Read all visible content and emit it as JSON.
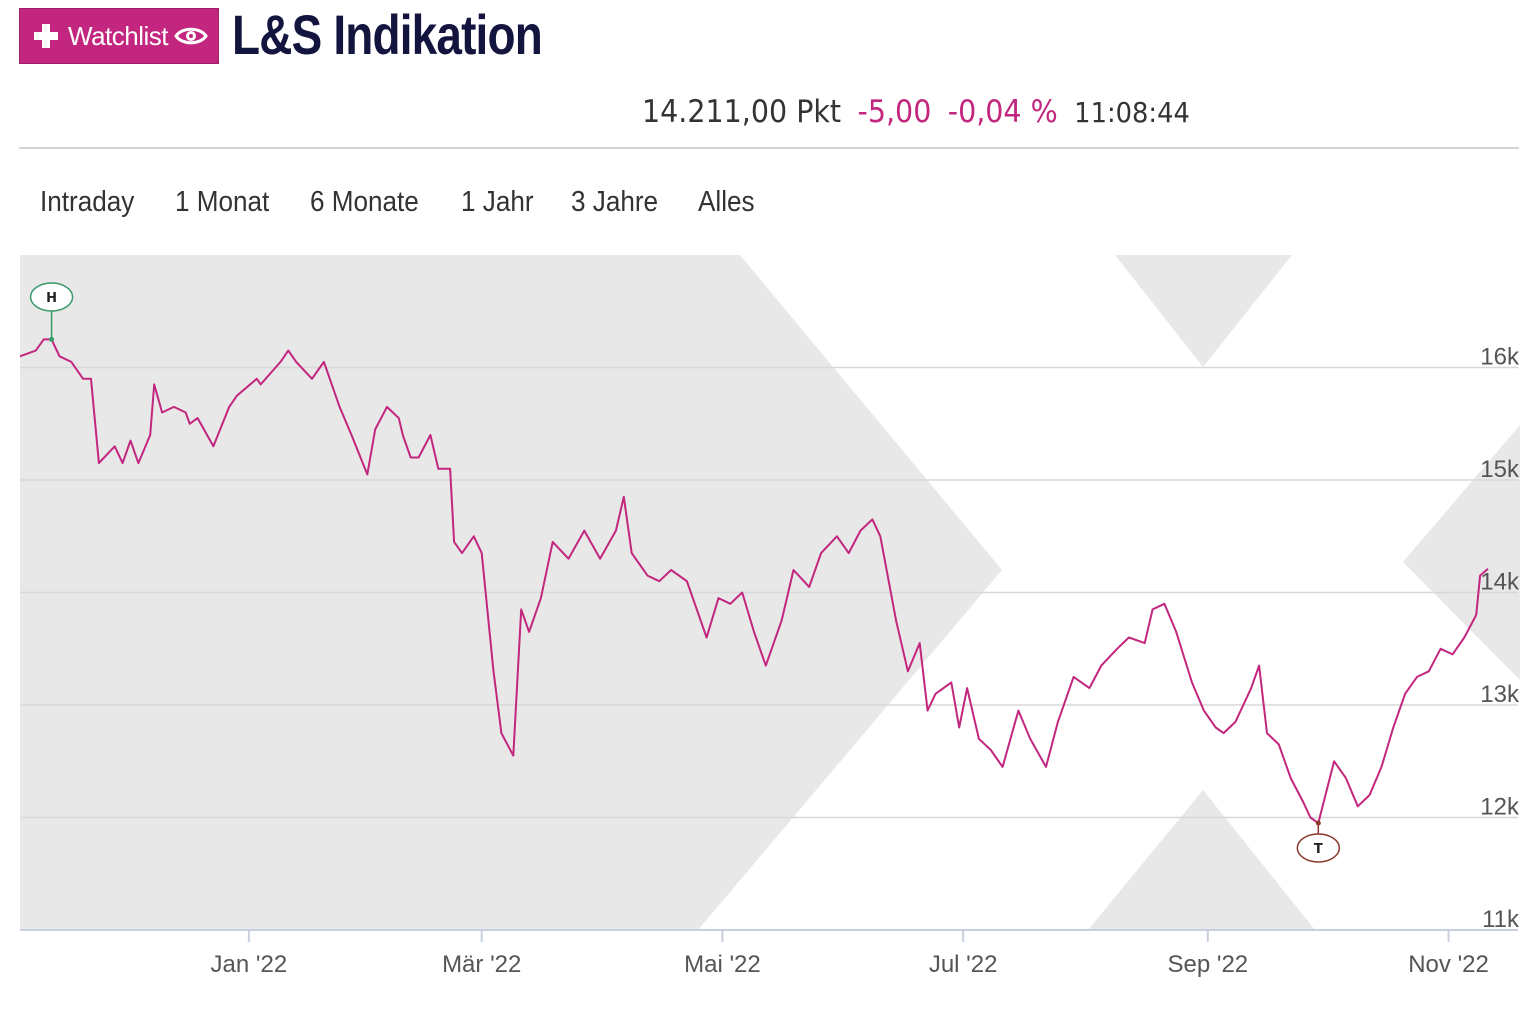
{
  "header": {
    "watchlist_label": "Watchlist",
    "title": "L&S Indikation"
  },
  "quote": {
    "price": "14.211,00 Pkt",
    "change_abs": "-5,00",
    "change_pct": "-0,04 %",
    "time": "11:08:44"
  },
  "tabs": [
    {
      "label": "Intraday"
    },
    {
      "label": "1 Monat"
    },
    {
      "label": "6 Monate"
    },
    {
      "label": "1 Jahr"
    },
    {
      "label": "3 Jahre"
    },
    {
      "label": "Alles"
    }
  ],
  "icons": {
    "watchlist_plus": "plus-icon",
    "watchlist_eye": "eye-icon"
  },
  "colors": {
    "accent": "#c2267e",
    "title": "#14153f",
    "high_marker": "#3a9a6a",
    "low_marker": "#8b3a2a",
    "range_shade": "#e8e8e8",
    "grid": "#d8d8d8"
  },
  "chart_data": {
    "type": "line",
    "title": "",
    "xlabel": "",
    "ylabel": "",
    "x_ticks": [
      "Jan '22",
      "Mär '22",
      "Mai '22",
      "Jul '22",
      "Sep '22",
      "Nov '22"
    ],
    "y_ticks": [
      "11k",
      "12k",
      "13k",
      "14k",
      "15k",
      "16k"
    ],
    "ylim": [
      11000,
      17000
    ],
    "xlim": [
      "2021-11-04",
      "2022-11-11"
    ],
    "grid": "horizontal",
    "markers": {
      "high": {
        "label": "H",
        "x": "2021-11-12",
        "y": 16250
      },
      "low": {
        "label": "T",
        "x": "2022-09-29",
        "y": 11950
      }
    },
    "series": [
      {
        "values": [
          [
            "2021-11-04",
            16100
          ],
          [
            "2021-11-08",
            16150
          ],
          [
            "2021-11-10",
            16250
          ],
          [
            "2021-11-12",
            16250
          ],
          [
            "2021-11-14",
            16100
          ],
          [
            "2021-11-17",
            16050
          ],
          [
            "2021-11-20",
            15900
          ],
          [
            "2021-11-22",
            15900
          ],
          [
            "2021-11-24",
            15150
          ],
          [
            "2021-11-28",
            15300
          ],
          [
            "2021-11-30",
            15150
          ],
          [
            "2021-12-02",
            15350
          ],
          [
            "2021-12-04",
            15150
          ],
          [
            "2021-12-07",
            15400
          ],
          [
            "2021-12-08",
            15850
          ],
          [
            "2021-12-10",
            15600
          ],
          [
            "2021-12-13",
            15650
          ],
          [
            "2021-12-16",
            15600
          ],
          [
            "2021-12-17",
            15500
          ],
          [
            "2021-12-19",
            15550
          ],
          [
            "2021-12-23",
            15300
          ],
          [
            "2021-12-27",
            15650
          ],
          [
            "2021-12-29",
            15750
          ],
          [
            "2022-01-03",
            15900
          ],
          [
            "2022-01-04",
            15850
          ],
          [
            "2022-01-09",
            16050
          ],
          [
            "2022-01-11",
            16150
          ],
          [
            "2022-01-13",
            16050
          ],
          [
            "2022-01-17",
            15900
          ],
          [
            "2022-01-19",
            16000
          ],
          [
            "2022-01-20",
            16050
          ],
          [
            "2022-01-24",
            15650
          ],
          [
            "2022-01-27",
            15400
          ],
          [
            "2022-01-31",
            15050
          ],
          [
            "2022-02-02",
            15450
          ],
          [
            "2022-02-05",
            15650
          ],
          [
            "2022-02-08",
            15550
          ],
          [
            "2022-02-09",
            15400
          ],
          [
            "2022-02-11",
            15200
          ],
          [
            "2022-02-13",
            15200
          ],
          [
            "2022-02-16",
            15400
          ],
          [
            "2022-02-18",
            15100
          ],
          [
            "2022-02-21",
            15100
          ],
          [
            "2022-02-22",
            14450
          ],
          [
            "2022-02-24",
            14350
          ],
          [
            "2022-02-27",
            14500
          ],
          [
            "2022-03-01",
            14350
          ],
          [
            "2022-03-04",
            13300
          ],
          [
            "2022-03-06",
            12750
          ],
          [
            "2022-03-09",
            12550
          ],
          [
            "2022-03-11",
            13850
          ],
          [
            "2022-03-13",
            13650
          ],
          [
            "2022-03-16",
            13950
          ],
          [
            "2022-03-19",
            14450
          ],
          [
            "2022-03-23",
            14300
          ],
          [
            "2022-03-27",
            14550
          ],
          [
            "2022-03-31",
            14300
          ],
          [
            "2022-04-04",
            14550
          ],
          [
            "2022-04-06",
            14850
          ],
          [
            "2022-04-08",
            14350
          ],
          [
            "2022-04-12",
            14150
          ],
          [
            "2022-04-15",
            14100
          ],
          [
            "2022-04-18",
            14200
          ],
          [
            "2022-04-22",
            14100
          ],
          [
            "2022-04-27",
            13600
          ],
          [
            "2022-04-30",
            13950
          ],
          [
            "2022-05-03",
            13900
          ],
          [
            "2022-05-06",
            14000
          ],
          [
            "2022-05-09",
            13650
          ],
          [
            "2022-05-12",
            13350
          ],
          [
            "2022-05-16",
            13750
          ],
          [
            "2022-05-19",
            14200
          ],
          [
            "2022-05-23",
            14050
          ],
          [
            "2022-05-26",
            14350
          ],
          [
            "2022-05-30",
            14500
          ],
          [
            "2022-06-02",
            14350
          ],
          [
            "2022-06-05",
            14550
          ],
          [
            "2022-06-08",
            14650
          ],
          [
            "2022-06-10",
            14500
          ],
          [
            "2022-06-14",
            13750
          ],
          [
            "2022-06-17",
            13300
          ],
          [
            "2022-06-20",
            13550
          ],
          [
            "2022-06-22",
            12950
          ],
          [
            "2022-06-24",
            13100
          ],
          [
            "2022-06-28",
            13200
          ],
          [
            "2022-06-30",
            12800
          ],
          [
            "2022-07-02",
            13150
          ],
          [
            "2022-07-05",
            12700
          ],
          [
            "2022-07-08",
            12600
          ],
          [
            "2022-07-11",
            12450
          ],
          [
            "2022-07-15",
            12950
          ],
          [
            "2022-07-18",
            12700
          ],
          [
            "2022-07-22",
            12450
          ],
          [
            "2022-07-25",
            12850
          ],
          [
            "2022-07-29",
            13250
          ],
          [
            "2022-08-02",
            13150
          ],
          [
            "2022-08-05",
            13350
          ],
          [
            "2022-08-09",
            13500
          ],
          [
            "2022-08-12",
            13600
          ],
          [
            "2022-08-16",
            13550
          ],
          [
            "2022-08-18",
            13850
          ],
          [
            "2022-08-21",
            13900
          ],
          [
            "2022-08-24",
            13650
          ],
          [
            "2022-08-28",
            13200
          ],
          [
            "2022-08-31",
            12950
          ],
          [
            "2022-09-03",
            12800
          ],
          [
            "2022-09-05",
            12750
          ],
          [
            "2022-09-08",
            12850
          ],
          [
            "2022-09-12",
            13150
          ],
          [
            "2022-09-14",
            13350
          ],
          [
            "2022-09-16",
            12750
          ],
          [
            "2022-09-19",
            12650
          ],
          [
            "2022-09-22",
            12350
          ],
          [
            "2022-09-25",
            12150
          ],
          [
            "2022-09-27",
            12000
          ],
          [
            "2022-09-29",
            11950
          ],
          [
            "2022-10-03",
            12500
          ],
          [
            "2022-10-06",
            12350
          ],
          [
            "2022-10-09",
            12100
          ],
          [
            "2022-10-12",
            12200
          ],
          [
            "2022-10-15",
            12450
          ],
          [
            "2022-10-18",
            12800
          ],
          [
            "2022-10-21",
            13100
          ],
          [
            "2022-10-24",
            13250
          ],
          [
            "2022-10-27",
            13300
          ],
          [
            "2022-10-30",
            13500
          ],
          [
            "2022-11-02",
            13450
          ],
          [
            "2022-11-05",
            13600
          ],
          [
            "2022-11-08",
            13800
          ],
          [
            "2022-11-09",
            14150
          ],
          [
            "2022-11-11",
            14211
          ]
        ]
      }
    ]
  }
}
